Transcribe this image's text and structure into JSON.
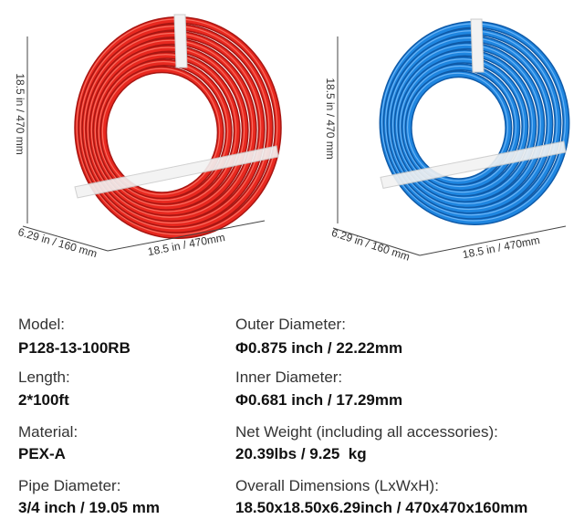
{
  "images": [
    {
      "height_label": "18.5 in / 470 mm",
      "depth_label": "6.29 in / 160 mm",
      "width_label": "18.5 in / 470mm"
    },
    {
      "height_label": "18.5 in / 470 mm",
      "depth_label": "6.29 in / 160 mm",
      "width_label": "18.5 in / 470mm"
    }
  ],
  "specs": {
    "left": [
      {
        "label": "Model:",
        "value": "P128-13-100RB"
      },
      {
        "label": "Length:",
        "value": "2*100ft"
      },
      {
        "label": "Material:",
        "value": "PEX-A"
      },
      {
        "label": "Pipe Diameter:",
        "value": "3/4 inch / 19.05 mm"
      }
    ],
    "right": [
      {
        "label": "Outer Diameter:",
        "value": "Φ0.875 inch / 22.22mm"
      },
      {
        "label": "Inner Diameter:",
        "value": "Φ0.681 inch / 17.29mm"
      },
      {
        "label": "Net Weight (including all accessories):",
        "value": "20.39lbs / 9.25  kg"
      },
      {
        "label": "Overall Dimensions (LxWxH):",
        "value": "18.50x18.50x6.29inch / 470x470x160mm"
      }
    ]
  }
}
